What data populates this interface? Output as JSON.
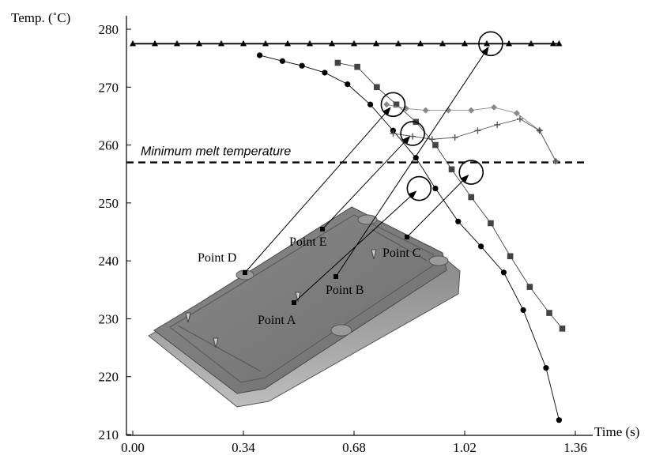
{
  "chart_data": {
    "type": "line",
    "ylabel": "Temp. (˚C)",
    "xlabel": "Time (s)",
    "xlim": [
      0,
      1.36
    ],
    "ylim": [
      210,
      280
    ],
    "x_ticks": [
      0.0,
      0.34,
      0.68,
      1.02,
      1.36
    ],
    "x_tick_labels": [
      "0.00",
      "0.34",
      "0.68",
      "1.02",
      "1.36"
    ],
    "y_ticks": [
      210,
      220,
      230,
      240,
      250,
      260,
      270,
      280
    ],
    "y_tick_labels": [
      "210",
      "220",
      "230",
      "240",
      "250",
      "260",
      "270",
      "280"
    ],
    "grid": false,
    "reference_line": {
      "label": "Minimum melt temperature",
      "value": 257
    },
    "series": [
      {
        "marker": "triangle",
        "color": "#000000",
        "x": [
          0.0,
          0.068,
          0.136,
          0.204,
          0.272,
          0.34,
          0.408,
          0.476,
          0.544,
          0.612,
          0.68,
          0.748,
          0.816,
          0.884,
          0.952,
          1.02,
          1.088,
          1.156,
          1.224,
          1.292,
          1.31
        ],
        "y": [
          277.5,
          277.5,
          277.5,
          277.5,
          277.5,
          277.5,
          277.5,
          277.5,
          277.5,
          277.5,
          277.5,
          277.5,
          277.5,
          277.5,
          277.5,
          277.5,
          277.5,
          277.5,
          277.5,
          277.5,
          277.5
        ]
      },
      {
        "marker": "circle",
        "color": "#000000",
        "x": [
          0.39,
          0.46,
          0.52,
          0.59,
          0.66,
          0.73,
          0.8,
          0.87,
          0.93,
          1.0,
          1.07,
          1.14,
          1.2,
          1.27,
          1.31
        ],
        "y": [
          275.5,
          274.5,
          273.7,
          272.5,
          270.5,
          267,
          262.5,
          257.8,
          252.5,
          246.8,
          242.5,
          238,
          231.5,
          221.5,
          212.5
        ]
      },
      {
        "marker": "square",
        "color": "#444444",
        "x": [
          0.63,
          0.69,
          0.75,
          0.81,
          0.87,
          0.93,
          0.98,
          1.04,
          1.1,
          1.16,
          1.22,
          1.28,
          1.32
        ],
        "y": [
          274.2,
          273.5,
          270,
          267,
          264,
          260,
          255.8,
          251,
          246.5,
          240.8,
          235.5,
          231,
          228.3
        ]
      },
      {
        "marker": "diamond",
        "color": "#888888",
        "x": [
          0.78,
          0.84,
          0.9,
          0.97,
          1.04,
          1.11,
          1.18,
          1.25,
          1.3
        ],
        "y": [
          267,
          266.3,
          266,
          266,
          266,
          266.5,
          265.5,
          262.5,
          257.2
        ]
      },
      {
        "marker": "plus",
        "color": "#555555",
        "x": [
          0.8,
          0.86,
          0.92,
          0.99,
          1.06,
          1.12,
          1.19,
          1.25,
          1.3
        ],
        "y": [
          262,
          261.5,
          261,
          261.3,
          262.5,
          263.5,
          264.5,
          262.5,
          257.2
        ]
      }
    ],
    "annotations": [
      {
        "label": "Point A",
        "target_x": 0.88,
        "target_y": 252.5
      },
      {
        "label": "Point B",
        "target_x": 1.1,
        "target_y": 277.5
      },
      {
        "label": "Point C",
        "target_x": 1.04,
        "target_y": 255.3
      },
      {
        "label": "Point D",
        "target_x": 0.8,
        "target_y": 267.0
      },
      {
        "label": "Point E",
        "target_x": 0.86,
        "target_y": 262.0
      }
    ]
  }
}
